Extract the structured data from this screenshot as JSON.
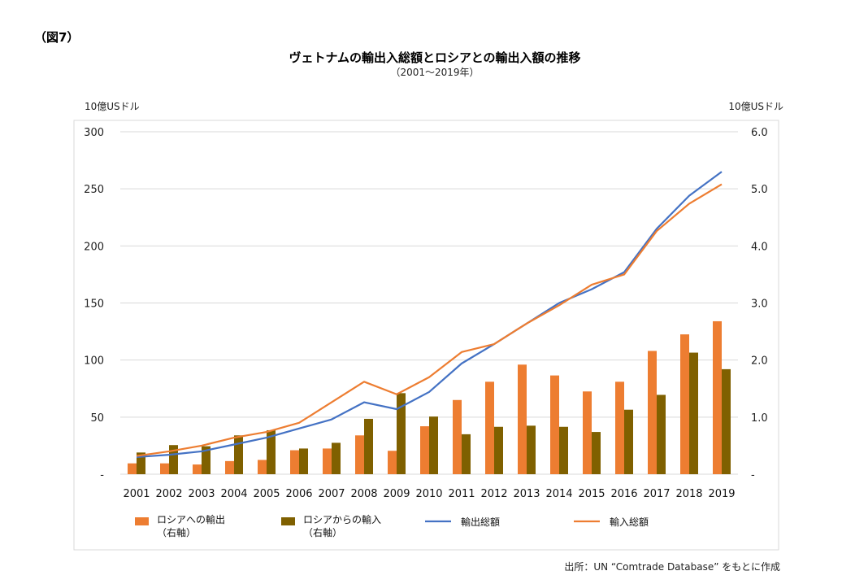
{
  "figure_label": "（図7）",
  "source_note": "出所：UN “Comtrade Database” をもとに作成",
  "colors": {
    "export_to_russia": "#ED7D31",
    "import_from_russia": "#7F6000",
    "total_exports": "#4472C4",
    "total_imports": "#ED7D31",
    "grid": "#D9D9D9",
    "frame": "#D9D9D9"
  },
  "chart_data": {
    "type": "bar",
    "title": "ヴェトナムの輸出入総額とロシアとの輸出入額の推移",
    "subtitle": "（2001～2019年）",
    "y_left_unit": "10億USドル",
    "y_right_unit": "10億USドル",
    "ylim_left": [
      0,
      300
    ],
    "ylim_right": [
      0,
      6.0
    ],
    "y_left_ticks": [
      "-",
      "50",
      "100",
      "150",
      "200",
      "250",
      "300"
    ],
    "y_right_ticks": [
      "-",
      "1.0",
      "2.0",
      "3.0",
      "4.0",
      "5.0",
      "6.0"
    ],
    "grid": true,
    "legend_position": "bottom",
    "categories": [
      "2001",
      "2002",
      "2003",
      "2004",
      "2005",
      "2006",
      "2007",
      "2008",
      "2009",
      "2010",
      "2011",
      "2012",
      "2013",
      "2014",
      "2015",
      "2016",
      "2017",
      "2018",
      "2019"
    ],
    "series": [
      {
        "name": "ロシアへの輸出\n（右軸）",
        "type": "bar",
        "axis": "right",
        "values": [
          0.19,
          0.19,
          0.17,
          0.23,
          0.25,
          0.42,
          0.45,
          0.68,
          0.41,
          0.84,
          1.3,
          1.62,
          1.92,
          1.73,
          1.45,
          1.62,
          2.16,
          2.45,
          2.68
        ]
      },
      {
        "name": "ロシアからの輸入\n（右軸）",
        "type": "bar",
        "axis": "right",
        "values": [
          0.38,
          0.51,
          0.49,
          0.68,
          0.77,
          0.45,
          0.55,
          0.97,
          1.42,
          1.01,
          0.7,
          0.83,
          0.85,
          0.83,
          0.74,
          1.13,
          1.39,
          2.13,
          1.84
        ]
      },
      {
        "name": "輸出総額",
        "type": "line",
        "axis": "left",
        "values": [
          15,
          17,
          20,
          26,
          32,
          40,
          48,
          63,
          57,
          72,
          97,
          114,
          132,
          150,
          162,
          177,
          215,
          244,
          265
        ]
      },
      {
        "name": "輸入総額",
        "type": "line",
        "axis": "left",
        "values": [
          16,
          20,
          25,
          32,
          37,
          45,
          63,
          81,
          70,
          85,
          107,
          114,
          132,
          148,
          166,
          175,
          213,
          237,
          254
        ]
      }
    ]
  }
}
